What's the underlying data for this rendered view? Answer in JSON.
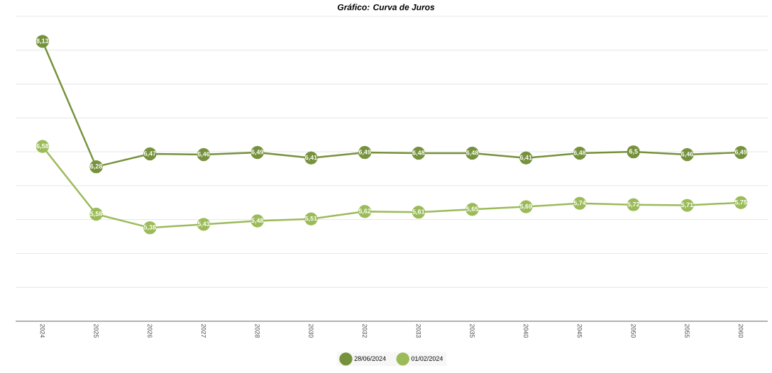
{
  "chart_data": {
    "type": "line",
    "title": "Gráfico: Curva de Juros",
    "categories": [
      "2024",
      "2025",
      "2026",
      "2027",
      "2028",
      "2030",
      "2032",
      "2033",
      "2035",
      "2040",
      "2045",
      "2050",
      "2055",
      "2060"
    ],
    "series": [
      {
        "name": "28/06/2024",
        "color": "#76923c",
        "values": [
          8.13,
          6.28,
          6.47,
          6.46,
          6.49,
          6.41,
          6.49,
          6.48,
          6.48,
          6.41,
          6.48,
          6.5,
          6.46,
          6.49
        ],
        "value_labels": [
          "8,13",
          "6,28",
          "6,47",
          "6,46",
          "6,49",
          "6,41",
          "6,49",
          "6,48",
          "6,48",
          "6,41",
          "6,48",
          "6,5",
          "6,46",
          "6,49"
        ]
      },
      {
        "name": "01/02/2024",
        "color": "#9bbb59",
        "values": [
          6.58,
          5.58,
          5.38,
          5.43,
          5.48,
          5.51,
          5.62,
          5.61,
          5.65,
          5.69,
          5.74,
          5.72,
          5.71,
          5.75
        ],
        "value_labels": [
          "6,58",
          "5,58",
          "5,38",
          "5,43",
          "5,48",
          "5,51",
          "5,62",
          "5,61",
          "5,65",
          "5,69",
          "5,74",
          "5,72",
          "5,71",
          "5,75"
        ]
      }
    ],
    "ylim": [
      4,
      8.5
    ],
    "yticks": [
      {
        "value": 4.5,
        "label": null
      },
      {
        "value": 5,
        "label": null
      },
      {
        "value": 5.5,
        "label": null
      },
      {
        "value": 6,
        "label": null
      },
      {
        "value": 6.5,
        "label": null
      },
      {
        "value": 7,
        "label": null
      },
      {
        "value": 7.5,
        "label": null
      },
      {
        "value": 8,
        "label": null
      },
      {
        "value": 8.5,
        "label": null
      }
    ],
    "grid": "y",
    "tick_labels": "x",
    "legend": "bottom",
    "marker": "circle",
    "line_style": "solid"
  }
}
